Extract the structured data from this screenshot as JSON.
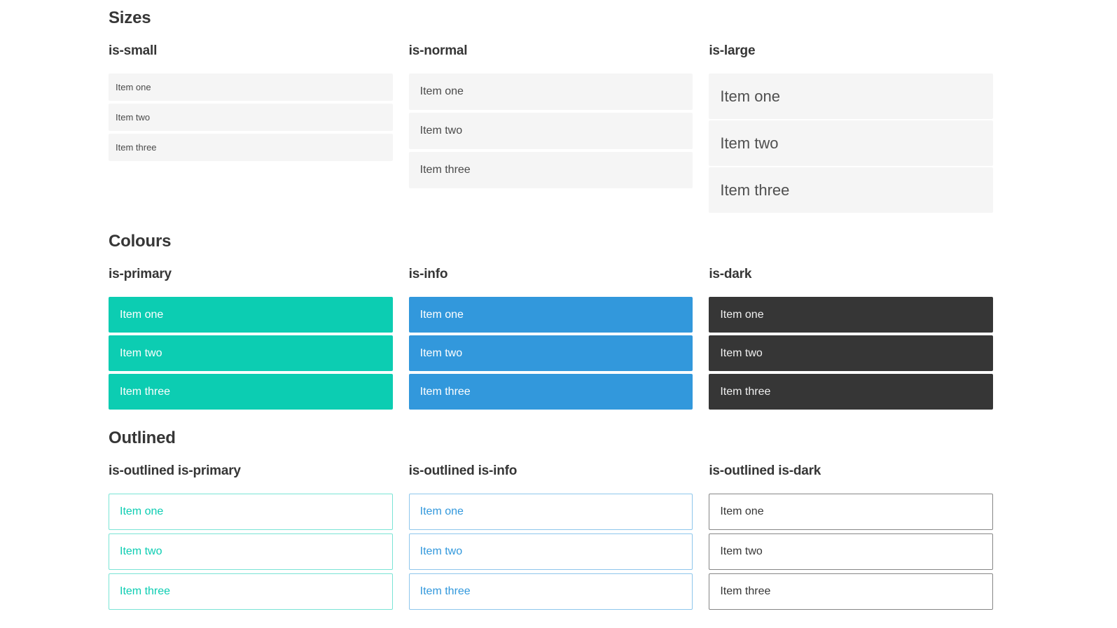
{
  "colors": {
    "primary": "#0ccdb2",
    "info": "#3298dc",
    "dark": "#363636",
    "item_bg_light": "#f5f5f5",
    "item_text": "#4a4a4a",
    "heading_text": "#363636"
  },
  "sections": [
    {
      "title": "Sizes",
      "groups": [
        {
          "label": "is-small",
          "variant": "small",
          "items": [
            "Item one",
            "Item two",
            "Item three"
          ]
        },
        {
          "label": "is-normal",
          "variant": "normal",
          "items": [
            "Item one",
            "Item two",
            "Item three"
          ]
        },
        {
          "label": "is-large",
          "variant": "large",
          "items": [
            "Item one",
            "Item two",
            "Item three"
          ]
        }
      ]
    },
    {
      "title": "Colours",
      "groups": [
        {
          "label": "is-primary",
          "variant": "primary",
          "items": [
            "Item one",
            "Item two",
            "Item three"
          ]
        },
        {
          "label": "is-info",
          "variant": "info",
          "items": [
            "Item one",
            "Item two",
            "Item three"
          ]
        },
        {
          "label": "is-dark",
          "variant": "dark",
          "items": [
            "Item one",
            "Item two",
            "Item three"
          ]
        }
      ]
    },
    {
      "title": "Outlined",
      "groups": [
        {
          "label": "is-outlined is-primary",
          "variant": "outlined-primary",
          "items": [
            "Item one",
            "Item two",
            "Item three"
          ]
        },
        {
          "label": "is-outlined is-info",
          "variant": "outlined-info",
          "items": [
            "Item one",
            "Item two",
            "Item three"
          ]
        },
        {
          "label": "is-outlined is-dark",
          "variant": "outlined-dark",
          "items": [
            "Item one",
            "Item two",
            "Item three"
          ]
        }
      ]
    }
  ]
}
